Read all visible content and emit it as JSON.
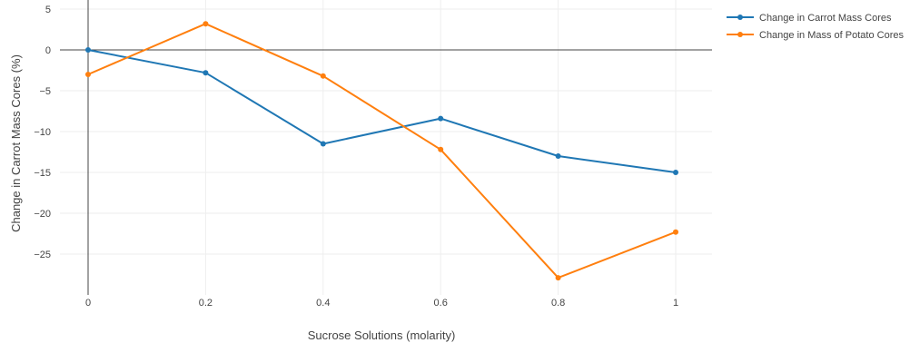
{
  "chart_data": {
    "type": "line",
    "xlabel": "Sucrose Solutions (molarity)",
    "ylabel": "Change in Carrot Mass Cores (%)",
    "x": [
      0,
      0.2,
      0.4,
      0.6,
      0.8,
      1
    ],
    "x_tick_labels": [
      "0",
      "0.2",
      "0.4",
      "0.6",
      "0.8",
      "1"
    ],
    "y_ticks": [
      5,
      0,
      -5,
      -10,
      -15,
      -20,
      -25
    ],
    "y_tick_labels": [
      "5",
      "0",
      "−5",
      "−10",
      "−15",
      "−20",
      "−25"
    ],
    "xlim": [
      -0.04,
      1.06
    ],
    "ylim": [
      -30,
      5
    ],
    "grid": true,
    "legend_position": "top-right",
    "series": [
      {
        "name": "Change in Carrot Mass Cores",
        "color": "#1f77b4",
        "values": [
          0,
          -2.8,
          -11.5,
          -8.4,
          -13.0,
          -15.0
        ]
      },
      {
        "name": "Change in Mass of Potato Cores",
        "color": "#ff7f0e",
        "values": [
          -3.0,
          3.2,
          -3.2,
          -12.2,
          -27.9,
          -22.3
        ]
      }
    ]
  }
}
